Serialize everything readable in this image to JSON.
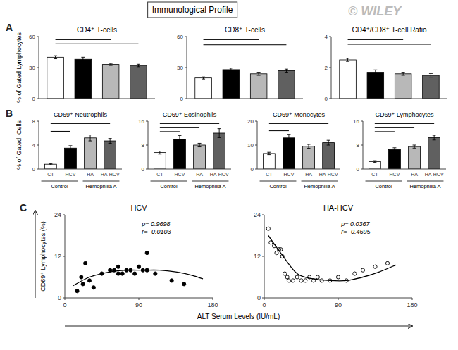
{
  "title": "Immunological Profile",
  "annotations": [
    "© WILEY",
    "A",
    "B",
    "C"
  ],
  "xlabel": "ALT Serum Levels (IU/mL)",
  "chart_data": [
    {
      "type": "bar",
      "title": "CD4⁺ T-cells",
      "ylabel": "% of Gated Lymphocytes",
      "categories": [
        null,
        null,
        null,
        null
      ],
      "tick_labels": "y",
      "values": [
        40,
        38,
        33,
        32
      ],
      "errors": [
        1.5,
        2.0,
        1.0,
        1.2
      ],
      "colors": [
        "white",
        "black",
        "#b8b8b8",
        "#606060"
      ],
      "ylim": [
        0,
        60
      ],
      "yticks": [
        0,
        30,
        60
      ],
      "significance_lines": [
        {
          "from": 0,
          "to": 2,
          "value": 57
        },
        {
          "from": 0,
          "to": 3,
          "value": 53
        }
      ]
    },
    {
      "type": "bar",
      "title": "CD8⁺ T-cells",
      "categories": [
        null,
        null,
        null,
        null
      ],
      "tick_labels": "y",
      "values": [
        20,
        28,
        24,
        27
      ],
      "errors": [
        1.0,
        1.5,
        1.5,
        1.5
      ],
      "colors": [
        "white",
        "black",
        "#b8b8b8",
        "#606060"
      ],
      "ylim": [
        0,
        60
      ],
      "yticks": [
        0,
        30,
        60
      ],
      "significance_lines": [
        {
          "from": 0,
          "to": 2,
          "value": 57
        },
        {
          "from": 0,
          "to": 3,
          "value": 52
        }
      ]
    },
    {
      "type": "bar",
      "title": "CD4⁺/CD8⁺ T-cell Ratio",
      "categories": [
        null,
        null,
        null,
        null
      ],
      "tick_labels": "y",
      "values": [
        2.5,
        1.7,
        1.6,
        1.5
      ],
      "errors": [
        0.1,
        0.15,
        0.1,
        0.12
      ],
      "colors": [
        "white",
        "black",
        "#b8b8b8",
        "#606060"
      ],
      "ylim": [
        0,
        4
      ],
      "yticks": [
        0,
        2,
        4
      ],
      "significance_lines": [
        {
          "from": 0,
          "to": 2,
          "value": 3.8
        },
        {
          "from": 0,
          "to": 3,
          "value": 3.5
        }
      ]
    },
    {
      "type": "bar",
      "title": "CD69⁺ Neutrophils",
      "ylabel": "% of Gated  Cells",
      "categories": [
        "CT",
        "HCV",
        "HA",
        "HA-HCV"
      ],
      "values": [
        0.8,
        3.5,
        5.2,
        4.7
      ],
      "errors": [
        0.1,
        0.4,
        0.5,
        0.4
      ],
      "colors": [
        "white",
        "black",
        "#b8b8b8",
        "#606060"
      ],
      "ylim": [
        0,
        8
      ],
      "yticks": [
        0,
        4,
        8
      ],
      "significance_lines": [
        {
          "from": 0,
          "to": 3,
          "value": 7.6
        },
        {
          "from": 0,
          "to": 2,
          "value": 7.0
        },
        {
          "from": 0,
          "to": 1,
          "value": 6.3
        }
      ],
      "annotations": [
        "Control",
        "Hemophilia A"
      ]
    },
    {
      "type": "bar",
      "title": "CD69⁺ Eosinophils",
      "categories": [
        "CT",
        "HCV",
        "HA",
        "HA-HCV"
      ],
      "values": [
        5.5,
        10.0,
        8.0,
        12.0
      ],
      "errors": [
        0.5,
        1.2,
        0.6,
        1.5
      ],
      "colors": [
        "white",
        "black",
        "#b8b8b8",
        "#606060"
      ],
      "ylim": [
        0,
        16
      ],
      "yticks": [
        0,
        8,
        16
      ],
      "significance_lines": [
        {
          "from": 0,
          "to": 3,
          "value": 15.2
        },
        {
          "from": 0,
          "to": 2,
          "value": 13.8
        },
        {
          "from": 0,
          "to": 1,
          "value": 12.5
        }
      ],
      "annotations": [
        "Control",
        "Hemophilia A"
      ]
    },
    {
      "type": "bar",
      "title": "CD69⁺ Monocytes",
      "categories": [
        "CT",
        "HCV",
        "HA",
        "HA-HCV"
      ],
      "values": [
        6.5,
        13.0,
        9.5,
        11.0
      ],
      "errors": [
        0.5,
        1.5,
        0.8,
        1.0
      ],
      "colors": [
        "white",
        "black",
        "#b8b8b8",
        "#606060"
      ],
      "ylim": [
        0,
        20
      ],
      "yticks": [
        0,
        10,
        20
      ],
      "significance_lines": [
        {
          "from": 0,
          "to": 3,
          "value": 19.0
        },
        {
          "from": 0,
          "to": 2,
          "value": 17.5
        },
        {
          "from": 0,
          "to": 1,
          "value": 16.0
        }
      ],
      "annotations": [
        "Control",
        "Hemophilia A"
      ]
    },
    {
      "type": "bar",
      "title": "CD69⁺ Lymphocytes",
      "categories": [
        "CT",
        "HCV",
        "HA",
        "HA-HCV"
      ],
      "values": [
        2.5,
        6.5,
        7.5,
        10.5
      ],
      "errors": [
        0.3,
        0.6,
        0.5,
        0.8
      ],
      "colors": [
        "white",
        "black",
        "#b8b8b8",
        "#606060"
      ],
      "ylim": [
        0,
        16
      ],
      "yticks": [
        0,
        8,
        16
      ],
      "significance_lines": [
        {
          "from": 0,
          "to": 3,
          "value": 15.2
        },
        {
          "from": 0,
          "to": 2,
          "value": 13.8
        },
        {
          "from": 0,
          "to": 1,
          "value": 12.5
        }
      ],
      "annotations": [
        "Control",
        "Hemophilia A"
      ]
    },
    {
      "type": "scatter",
      "title": "HCV",
      "ylabel": "CD69⁺ Lymphocytes (%)",
      "xlim": [
        0,
        180
      ],
      "ylim": [
        0,
        24
      ],
      "xticks": [
        0,
        90,
        180
      ],
      "yticks": [
        0,
        12,
        24
      ],
      "annotations": [
        "p= 0.9698\nr= -0.0103"
      ],
      "series": [
        {
          "type": "scatter",
          "marker": "circle",
          "color": "black",
          "x": [
            15,
            20,
            22,
            25,
            30,
            35,
            45,
            55,
            60,
            65,
            65,
            70,
            75,
            80,
            85,
            90,
            95,
            100,
            100,
            110,
            130,
            145
          ],
          "values": [
            2,
            6,
            4,
            10,
            5,
            3,
            7,
            8,
            8,
            7,
            9,
            7,
            8,
            8,
            7,
            9,
            8,
            8,
            13,
            7,
            5,
            4
          ]
        },
        {
          "type": "line",
          "line_style": "solid",
          "color": "black",
          "x": [
            10,
            30,
            55,
            75,
            95,
            115,
            135,
            155,
            168
          ],
          "values": [
            3.5,
            6,
            7.5,
            8,
            8,
            8,
            7.5,
            6.5,
            5.5
          ]
        }
      ]
    },
    {
      "type": "scatter",
      "title": "HA-HCV",
      "xlim": [
        0,
        180
      ],
      "ylim": [
        0,
        24
      ],
      "xticks": [
        0,
        90,
        180
      ],
      "yticks": [
        0,
        12,
        24
      ],
      "annotations": [
        "p= 0.0367\nr= -0.4695"
      ],
      "series": [
        {
          "type": "scatter",
          "marker": "open-circle",
          "color": "black",
          "x": [
            5,
            8,
            12,
            15,
            18,
            20,
            22,
            25,
            28,
            30,
            35,
            40,
            45,
            50,
            55,
            60,
            65,
            70,
            80,
            90,
            100,
            110,
            120,
            135,
            150
          ],
          "values": [
            20,
            16,
            15,
            13,
            14,
            14,
            12,
            7,
            6,
            5,
            5,
            6,
            5,
            5,
            6,
            5,
            6,
            5,
            5,
            6,
            5,
            7,
            8,
            9,
            10
          ]
        },
        {
          "type": "line",
          "line_style": "solid",
          "color": "black",
          "x": [
            5,
            20,
            40,
            60,
            80,
            100,
            120,
            140,
            160
          ],
          "values": [
            18,
            13,
            7,
            5.5,
            5,
            5,
            6,
            7.5,
            9.5
          ]
        }
      ]
    }
  ]
}
